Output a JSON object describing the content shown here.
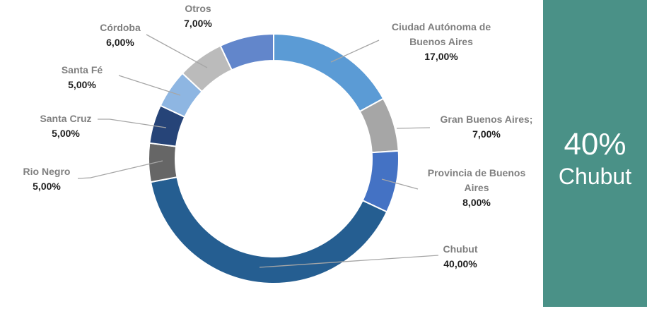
{
  "chart_data": {
    "type": "pie",
    "subtype": "donut",
    "title": "",
    "legend": "none",
    "start_angle_deg": 0,
    "direction": "clockwise",
    "value_format": "percent-comma-decimal",
    "label_name_color": "#7F7F7F",
    "label_value_color": "#1F1F1F",
    "leader_line_color": "#A6A6A6",
    "slice_border_color": "#FFFFFF",
    "slices": [
      {
        "key": "ciudad",
        "name": "Ciudad Autónoma de Buenos Aires",
        "display_label": "Ciudad Autónoma de Buenos Aires",
        "value": 17,
        "value_label": "17,00%",
        "color": "#5B9BD5"
      },
      {
        "key": "granba",
        "name": "Gran Buenos Aires",
        "display_label": "Gran Buenos Aires;",
        "value": 7,
        "value_label": "7,00%",
        "color": "#A6A6A6"
      },
      {
        "key": "provincia",
        "name": "Provincia de Buenos Aires",
        "display_label": "Provincia de Buenos Aires",
        "value": 8,
        "value_label": "8,00%",
        "color": "#4472C4"
      },
      {
        "key": "chubut",
        "name": "Chubut",
        "display_label": "Chubut",
        "value": 40,
        "value_label": "40,00%",
        "color": "#255E91"
      },
      {
        "key": "rionegro",
        "name": "Rio Negro",
        "display_label": "Rio Negro",
        "value": 5,
        "value_label": "5,00%",
        "color": "#666666"
      },
      {
        "key": "santacruz",
        "name": "Santa Cruz",
        "display_label": "Santa Cruz",
        "value": 5,
        "value_label": "5,00%",
        "color": "#264478"
      },
      {
        "key": "santafe",
        "name": "Santa Fé",
        "display_label": "Santa Fé",
        "value": 5,
        "value_label": "5,00%",
        "color": "#8EB6E2"
      },
      {
        "key": "cordoba",
        "name": "Córdoba",
        "display_label": "Córdoba",
        "value": 6,
        "value_label": "6,00%",
        "color": "#BBBBBB"
      },
      {
        "key": "otros",
        "name": "Otros",
        "display_label": "Otros",
        "value": 7,
        "value_label": "7,00%",
        "color": "#6286CB"
      }
    ]
  },
  "side_panel": {
    "value_label": "40%",
    "name_label": "Chubut",
    "background": "#4A9187",
    "text_color": "#FFFFFF"
  }
}
